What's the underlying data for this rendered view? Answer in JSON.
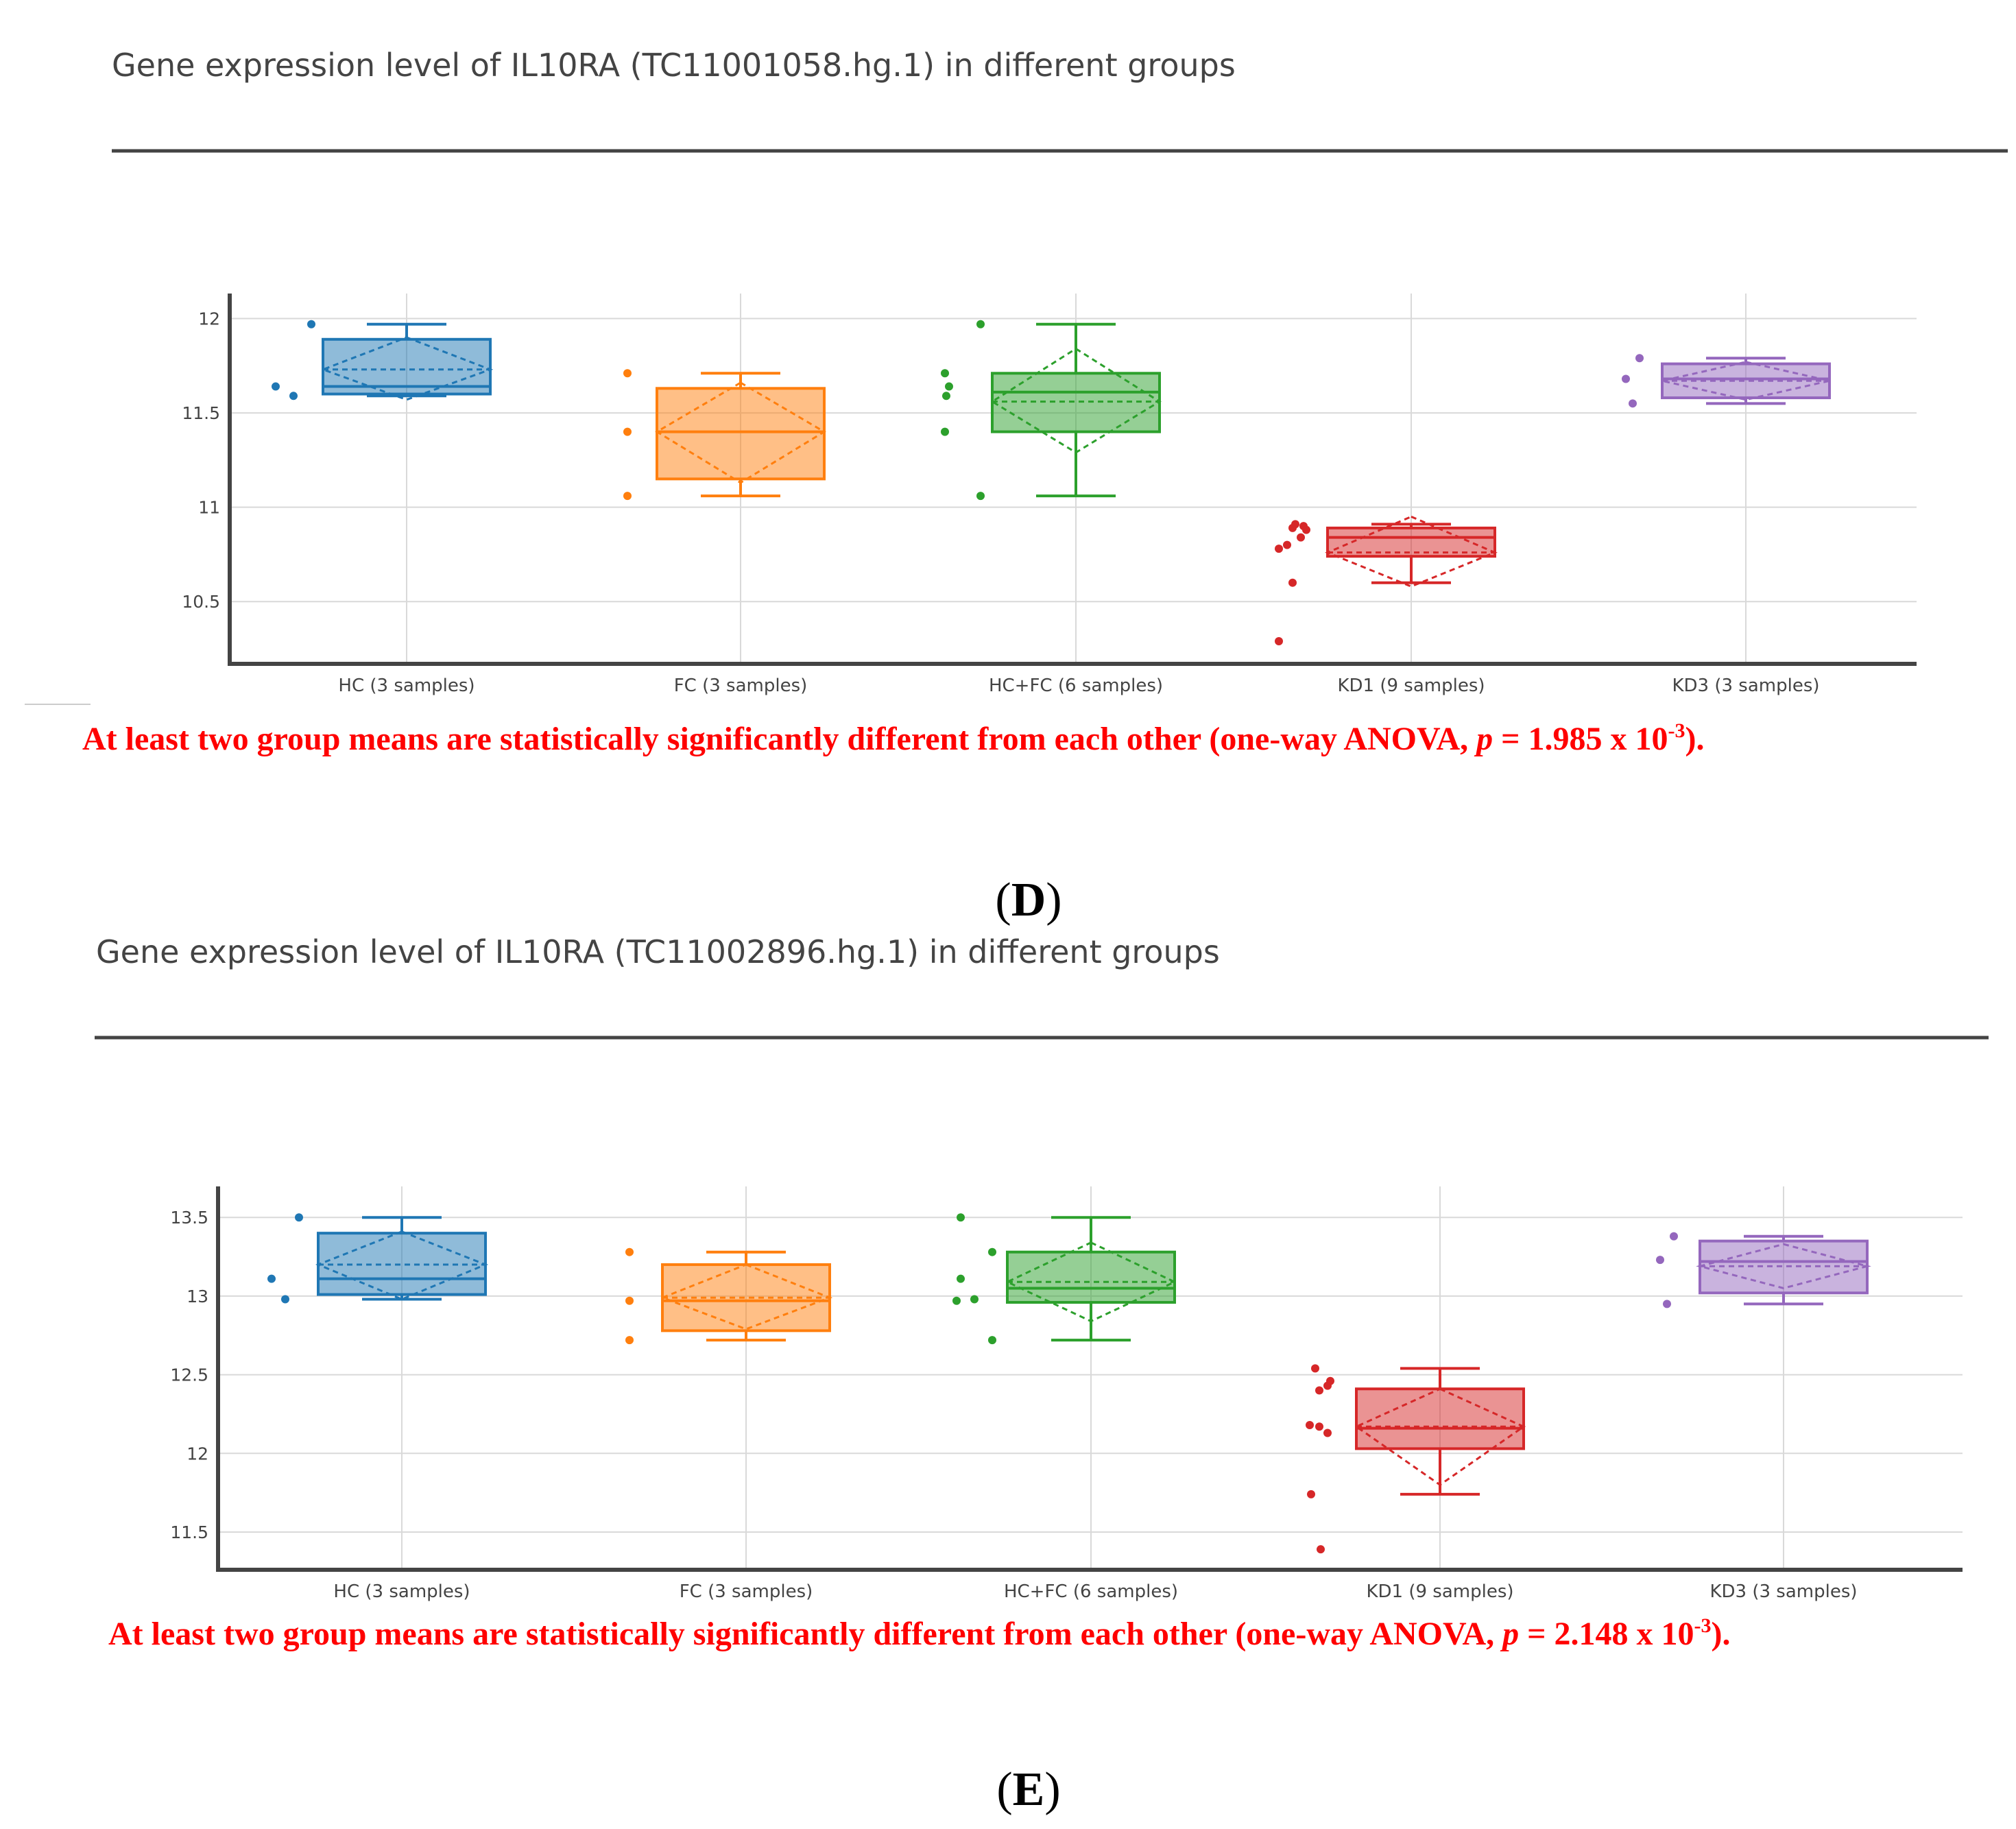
{
  "colors": {
    "HC": "#1f77b4",
    "FC": "#ff7f0e",
    "HC+FC": "#2ca02c",
    "KD1": "#d62728",
    "KD3": "#9467bd",
    "note": "#ff0000"
  },
  "chart_data": [
    {
      "type": "box",
      "title": "Gene expression level of IL10RA (TC11001058.hg.1) in different groups",
      "categories": [
        "HC (3 samples)",
        "FC (3 samples)",
        "HC+FC (6 samples)",
        "KD1 (9 samples)",
        "KD3 (3 samples)"
      ],
      "yticks": [
        10.5,
        11,
        11.5,
        12
      ],
      "ylim": [
        10.17,
        12.06
      ],
      "grid": true,
      "boxes": [
        {
          "group": "HC",
          "min": 11.59,
          "q1": 11.6,
          "median": 11.64,
          "q3": 11.89,
          "max": 11.97,
          "mean": 11.73,
          "sd_low": 11.57,
          "sd_high": 11.9,
          "points": [
            11.64,
            11.59,
            11.97
          ]
        },
        {
          "group": "FC",
          "min": 11.06,
          "q1": 11.15,
          "median": 11.4,
          "q3": 11.63,
          "max": 11.71,
          "mean": 11.4,
          "sd_low": 11.13,
          "sd_high": 11.66,
          "points": [
            11.4,
            11.06,
            11.71
          ]
        },
        {
          "group": "HC+FC",
          "min": 11.06,
          "q1": 11.4,
          "median": 11.61,
          "q3": 11.71,
          "max": 11.97,
          "mean": 11.56,
          "sd_low": 11.29,
          "sd_high": 11.84,
          "points": [
            11.64,
            11.71,
            11.97,
            11.59,
            11.4,
            11.06
          ]
        },
        {
          "group": "KD1",
          "min": 10.6,
          "q1": 10.74,
          "median": 10.84,
          "q3": 10.89,
          "max": 10.91,
          "mean": 10.76,
          "sd_low": 10.58,
          "sd_high": 10.95,
          "points": [
            10.91,
            10.9,
            10.88,
            10.89,
            10.84,
            10.8,
            10.78,
            10.6,
            10.29
          ]
        },
        {
          "group": "KD3",
          "min": 11.55,
          "q1": 11.58,
          "median": 11.68,
          "q3": 11.76,
          "max": 11.79,
          "mean": 11.67,
          "sd_low": 11.57,
          "sd_high": 11.77,
          "points": [
            11.68,
            11.55,
            11.79
          ]
        }
      ],
      "note": {
        "before": "At least two group means are statistically significantly different from each other (one-way ANOVA, ",
        "p": "p",
        "middle": " = 1.985 x 10",
        "exponent": "-3",
        "after": ")."
      },
      "panel_label": {
        "open": "(",
        "letter": "D",
        "close": ")"
      }
    },
    {
      "type": "box",
      "title": "Gene expression level of IL10RA (TC11002896.hg.1) in different groups",
      "categories": [
        "HC (3 samples)",
        "FC (3 samples)",
        "HC+FC (6 samples)",
        "KD1 (9 samples)",
        "KD3 (3 samples)"
      ],
      "yticks": [
        11.5,
        12,
        12.5,
        13,
        13.5
      ],
      "ylim": [
        11.26,
        13.61
      ],
      "grid": true,
      "boxes": [
        {
          "group": "HC",
          "min": 12.98,
          "q1": 13.01,
          "median": 13.11,
          "q3": 13.4,
          "max": 13.5,
          "mean": 13.2,
          "sd_low": 12.98,
          "sd_high": 13.41,
          "points": [
            13.11,
            12.98,
            13.5
          ]
        },
        {
          "group": "FC",
          "min": 12.72,
          "q1": 12.78,
          "median": 12.97,
          "q3": 13.2,
          "max": 13.28,
          "mean": 12.99,
          "sd_low": 12.79,
          "sd_high": 13.2,
          "points": [
            12.97,
            12.72,
            13.28
          ]
        },
        {
          "group": "HC+FC",
          "min": 12.72,
          "q1": 12.96,
          "median": 13.05,
          "q3": 13.28,
          "max": 13.5,
          "mean": 13.09,
          "sd_low": 12.84,
          "sd_high": 13.34,
          "points": [
            13.11,
            12.97,
            13.28,
            13.5,
            12.98,
            12.72
          ]
        },
        {
          "group": "KD1",
          "min": 11.74,
          "q1": 12.03,
          "median": 12.16,
          "q3": 12.41,
          "max": 12.54,
          "mean": 12.17,
          "sd_low": 11.8,
          "sd_high": 12.41,
          "points": [
            12.54,
            12.43,
            12.4,
            12.18,
            12.17,
            12.13,
            11.74,
            11.39,
            12.46
          ]
        },
        {
          "group": "KD3",
          "min": 12.95,
          "q1": 13.02,
          "median": 13.22,
          "q3": 13.35,
          "max": 13.38,
          "mean": 13.19,
          "sd_low": 13.05,
          "sd_high": 13.33,
          "points": [
            13.23,
            12.95,
            13.38
          ]
        }
      ],
      "note": {
        "before": "At least two group means are statistically significantly different from each other (one-way ANOVA, ",
        "p": "p",
        "middle": " = 2.148 x 10",
        "exponent": "-3",
        "after": ")."
      },
      "panel_label": {
        "open": "(",
        "letter": "E",
        "close": ")"
      }
    }
  ]
}
